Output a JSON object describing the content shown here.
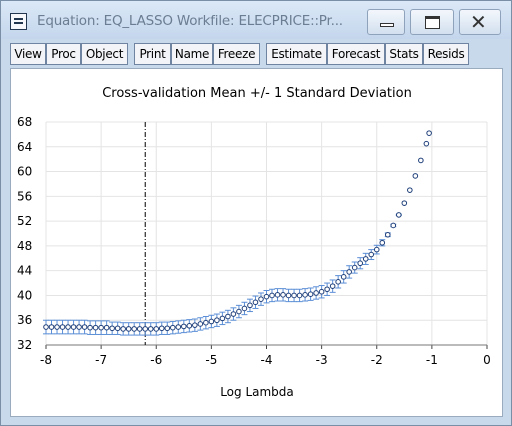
{
  "window": {
    "title": "Equation: EQ_LASSO   Workfile: ELECPRICE::Pr...",
    "controls": {
      "minimize": "minimize-icon",
      "maximize": "maximize-icon",
      "close": "close-icon",
      "close_glyph": "✕"
    }
  },
  "toolbar": {
    "buttons": [
      "View",
      "Proc",
      "Object",
      "Print",
      "Name",
      "Freeze",
      "Estimate",
      "Forecast",
      "Stats",
      "Resids"
    ]
  },
  "chart_data": {
    "type": "scatter",
    "title": "Cross-validation Mean +/- 1 Standard Deviation",
    "xlabel": "Log Lambda",
    "ylabel": "",
    "xlim": [
      -8,
      0
    ],
    "ylim": [
      32,
      68
    ],
    "x_ticks": [
      -8,
      -7,
      -6,
      -5,
      -4,
      -3,
      -2,
      -1,
      0
    ],
    "y_ticks": [
      32,
      36,
      40,
      44,
      48,
      52,
      56,
      60,
      64,
      68
    ],
    "grid": true,
    "vline_x": -6.2,
    "marker_color": "#1f3f7a",
    "errorbar_color": "#5b8ed6",
    "points": [
      [
        -8.0,
        34.9
      ],
      [
        -7.9,
        34.9
      ],
      [
        -7.8,
        34.9
      ],
      [
        -7.7,
        34.9
      ],
      [
        -7.6,
        34.9
      ],
      [
        -7.5,
        34.9
      ],
      [
        -7.4,
        34.9
      ],
      [
        -7.3,
        34.9
      ],
      [
        -7.2,
        34.8
      ],
      [
        -7.1,
        34.8
      ],
      [
        -7.0,
        34.8
      ],
      [
        -6.9,
        34.8
      ],
      [
        -6.8,
        34.7
      ],
      [
        -6.7,
        34.7
      ],
      [
        -6.6,
        34.6
      ],
      [
        -6.5,
        34.6
      ],
      [
        -6.4,
        34.6
      ],
      [
        -6.3,
        34.6
      ],
      [
        -6.2,
        34.6
      ],
      [
        -6.1,
        34.6
      ],
      [
        -6.0,
        34.6
      ],
      [
        -5.9,
        34.7
      ],
      [
        -5.8,
        34.7
      ],
      [
        -5.7,
        34.8
      ],
      [
        -5.6,
        34.9
      ],
      [
        -5.5,
        35.0
      ],
      [
        -5.4,
        35.1
      ],
      [
        -5.3,
        35.2
      ],
      [
        -5.2,
        35.4
      ],
      [
        -5.1,
        35.6
      ],
      [
        -5.0,
        35.8
      ],
      [
        -4.9,
        36.0
      ],
      [
        -4.8,
        36.3
      ],
      [
        -4.7,
        36.6
      ],
      [
        -4.6,
        37.0
      ],
      [
        -4.5,
        37.4
      ],
      [
        -4.4,
        37.9
      ],
      [
        -4.3,
        38.4
      ],
      [
        -4.2,
        38.9
      ],
      [
        -4.1,
        39.4
      ],
      [
        -4.0,
        39.8
      ],
      [
        -3.9,
        40.0
      ],
      [
        -3.8,
        40.1
      ],
      [
        -3.7,
        40.1
      ],
      [
        -3.6,
        40.0
      ],
      [
        -3.5,
        40.0
      ],
      [
        -3.4,
        40.0
      ],
      [
        -3.3,
        40.1
      ],
      [
        -3.2,
        40.2
      ],
      [
        -3.1,
        40.4
      ],
      [
        -3.0,
        40.6
      ],
      [
        -2.9,
        41.0
      ],
      [
        -2.8,
        41.5
      ],
      [
        -2.7,
        42.2
      ],
      [
        -2.6,
        43.0
      ],
      [
        -2.5,
        43.8
      ],
      [
        -2.4,
        44.5
      ],
      [
        -2.3,
        45.2
      ],
      [
        -2.2,
        45.9
      ],
      [
        -2.1,
        46.6
      ],
      [
        -2.0,
        47.4
      ],
      [
        -1.9,
        48.5
      ],
      [
        -1.8,
        49.8
      ],
      [
        -1.7,
        51.3
      ],
      [
        -1.6,
        53.0
      ],
      [
        -1.5,
        54.9
      ],
      [
        -1.4,
        57.0
      ],
      [
        -1.3,
        59.3
      ],
      [
        -1.2,
        61.8
      ],
      [
        -1.1,
        64.5
      ],
      [
        -1.05,
        66.2
      ]
    ],
    "stdevs": [
      1.1,
      1.1,
      1.1,
      1.1,
      1.1,
      1.1,
      1.1,
      1.1,
      1.1,
      1.1,
      1.1,
      1.1,
      1.0,
      1.0,
      1.0,
      1.0,
      1.0,
      1.0,
      1.0,
      1.0,
      1.0,
      1.0,
      1.0,
      1.0,
      1.0,
      1.0,
      1.0,
      1.0,
      1.0,
      1.0,
      1.0,
      1.0,
      1.0,
      1.0,
      1.0,
      1.0,
      1.0,
      1.0,
      1.0,
      1.0,
      1.0,
      1.0,
      1.0,
      1.0,
      1.0,
      1.0,
      1.0,
      1.0,
      1.0,
      1.0,
      1.0,
      1.0,
      1.0,
      1.0,
      1.0,
      1.0,
      0.9,
      0.9,
      0.9,
      0.8,
      0.7,
      0.5,
      0.3,
      0.2,
      0.1,
      0,
      0,
      0,
      0,
      0,
      0
    ]
  }
}
